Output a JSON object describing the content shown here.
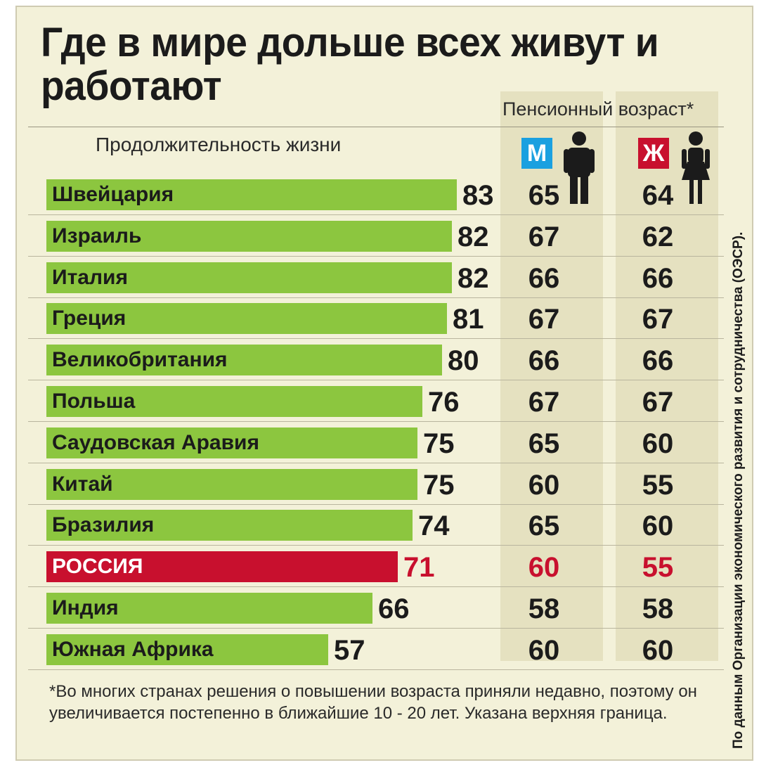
{
  "title": "Где в мире дольше всех живут и работают",
  "life_label": "Продолжительность жизни",
  "pension_label": "Пенсионный возраст*",
  "badge_m": "М",
  "badge_f": "Ж",
  "footnote": "*Во многих странах решения о повышении возраста приняли недавно, поэтому он увеличивается постепенно в ближайшие 10 - 20 лет. Указана верхняя граница.",
  "source": "По данным Организации экономического развития и сотрудничества (ОЭСР).",
  "colors": {
    "bar": "#8cc63f",
    "highlight": "#c8102e",
    "badge_m": "#1aa0e0",
    "badge_f": "#c8102e"
  },
  "icons": {
    "male": "man-icon",
    "female": "woman-icon"
  },
  "chart_data": {
    "type": "bar",
    "orientation": "horizontal",
    "title": "Где в мире дольше всех живут и работают",
    "categories": [
      "Швейцария",
      "Израиль",
      "Италия",
      "Греция",
      "Великобритания",
      "Польша",
      "Саудовская Аравия",
      "Китай",
      "Бразилия",
      "РОССИЯ",
      "Индия",
      "Южная Африка"
    ],
    "highlight": "РОССИЯ",
    "series": [
      {
        "name": "Продолжительность жизни",
        "values": [
          83,
          82,
          82,
          81,
          80,
          76,
          75,
          75,
          74,
          71,
          66,
          57
        ]
      },
      {
        "name": "М",
        "values": [
          65,
          67,
          66,
          67,
          66,
          67,
          65,
          60,
          65,
          60,
          58,
          60
        ]
      },
      {
        "name": "Ж",
        "values": [
          64,
          62,
          66,
          67,
          66,
          67,
          60,
          55,
          60,
          55,
          58,
          60
        ]
      }
    ]
  }
}
